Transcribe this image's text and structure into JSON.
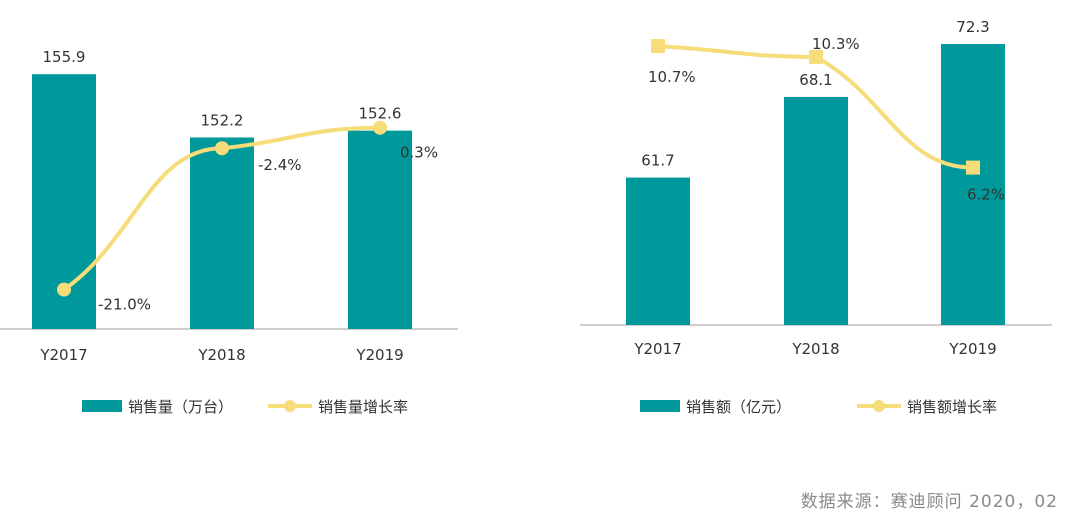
{
  "colors": {
    "bar": "#00999b",
    "line": "#f7dc7a",
    "axis": "#bfbfbf",
    "text": "#333333",
    "source": "#8a8a8a"
  },
  "chart_data": [
    {
      "type": "bar+line",
      "categories": [
        "Y2017",
        "Y2018",
        "Y2019"
      ],
      "bar_series": {
        "name": "销售量（万台）",
        "values": [
          155.9,
          152.2,
          152.6
        ]
      },
      "line_series": {
        "name": "销售量增长率",
        "values": [
          -21.0,
          -2.4,
          0.3
        ],
        "labels": [
          "-21.0%",
          "-2.4%",
          "0.3%"
        ],
        "marker": "circle"
      },
      "legend": "bottom"
    },
    {
      "type": "bar+line",
      "categories": [
        "Y2017",
        "Y2018",
        "Y2019"
      ],
      "bar_series": {
        "name": "销售额（亿元）",
        "values": [
          61.7,
          68.1,
          72.3
        ]
      },
      "line_series": {
        "name": "销售额增长率",
        "values": [
          10.7,
          10.3,
          6.2
        ],
        "labels": [
          "10.7%",
          "10.3%",
          "6.2%"
        ],
        "marker": "square"
      },
      "legend": "bottom"
    }
  ],
  "footer": {
    "source": "数据来源：赛迪顾问   2020，02"
  }
}
